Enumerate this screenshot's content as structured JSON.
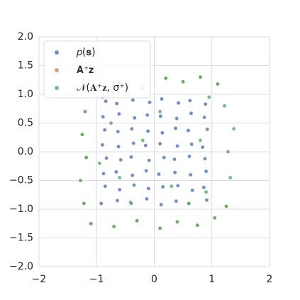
{
  "chart_data": {
    "type": "scatter",
    "xlim": [
      -2,
      2
    ],
    "ylim": [
      -2,
      2
    ],
    "xticks": [
      {
        "value": -2,
        "label": "−2"
      },
      {
        "value": -1,
        "label": "−1"
      },
      0,
      1,
      2
    ],
    "yticks": [
      {
        "value": -2,
        "label": "−2.0"
      },
      {
        "value": -1.5,
        "label": "−1.5"
      },
      {
        "value": -1,
        "label": "−1.0"
      },
      {
        "value": -0.5,
        "label": "−0.5"
      },
      {
        "value": 0,
        "label": "0.0"
      },
      {
        "value": 0.5,
        "label": "0.5"
      },
      {
        "value": 1,
        "label": "1.0"
      },
      {
        "value": 1.5,
        "label": "1.5"
      },
      {
        "value": 2,
        "label": "2.0"
      }
    ],
    "grid": true,
    "legend": "upper-left",
    "series": [
      {
        "name": "𝑝(𝐬)",
        "color": "#4c72b0",
        "x": [
          -0.92,
          -0.64,
          -0.41,
          -0.13,
          0.12,
          0.38,
          0.6,
          0.91,
          -0.85,
          -0.6,
          -0.35,
          -0.1,
          0.15,
          0.41,
          0.66,
          0.86,
          -0.88,
          -0.66,
          -0.38,
          -0.14,
          0.08,
          0.36,
          0.63,
          0.9,
          -0.83,
          -0.58,
          -0.4,
          -0.09,
          0.17,
          0.35,
          0.61,
          0.88,
          -0.9,
          -0.62,
          -0.36,
          -0.15,
          0.1,
          0.4,
          0.65,
          0.84,
          -0.86,
          -0.63,
          -0.39,
          -0.11,
          0.14,
          0.37,
          0.59,
          0.92,
          -0.89,
          -0.61,
          -0.34,
          -0.12,
          0.11,
          0.39,
          0.64,
          0.87,
          -0.84,
          -0.65,
          -0.37,
          -0.08,
          0.13,
          0.42,
          0.62,
          0.89
        ],
        "values": [
          -0.9,
          -0.85,
          -0.88,
          -0.82,
          -0.92,
          -0.86,
          -0.9,
          -0.84,
          -0.6,
          -0.66,
          -0.58,
          -0.64,
          -0.61,
          -0.59,
          -0.67,
          -0.62,
          -0.38,
          -0.35,
          -0.41,
          -0.33,
          -0.39,
          -0.36,
          -0.4,
          -0.34,
          -0.11,
          -0.14,
          -0.09,
          -0.15,
          -0.1,
          -0.13,
          -0.08,
          -0.12,
          0.12,
          0.09,
          0.15,
          0.11,
          0.14,
          0.1,
          0.13,
          0.08,
          0.38,
          0.35,
          0.4,
          0.36,
          0.33,
          0.41,
          0.37,
          0.39,
          0.61,
          0.66,
          0.59,
          0.64,
          0.62,
          0.58,
          0.67,
          0.6,
          0.88,
          0.84,
          0.9,
          0.86,
          0.92,
          0.85,
          0.89,
          0.83
        ]
      },
      {
        "name": "𝐀⁺𝐳",
        "color": "#dd8452",
        "x": [
          -1.0,
          -0.6,
          -0.2,
          0.2,
          0.5,
          0.8,
          1.1,
          -1.1,
          -0.7,
          -0.3,
          0.1,
          0.4,
          0.75,
          1.05,
          -1.22,
          -1.28,
          -1.18,
          -1.25,
          -1.2,
          1.25
        ],
        "values": [
          1.15,
          1.2,
          1.1,
          1.28,
          1.22,
          1.3,
          1.18,
          -1.25,
          -1.3,
          -1.2,
          -1.33,
          -1.22,
          -1.28,
          -1.15,
          -0.9,
          -0.5,
          -0.1,
          0.3,
          0.7,
          -0.95
        ]
      },
      {
        "name": "𝒩(𝐀⁺𝐳, σ⁺)",
        "color": "#55a868",
        "x": [
          -1.0,
          -0.6,
          -0.2,
          0.2,
          0.5,
          0.8,
          1.1,
          -1.1,
          -0.7,
          -0.3,
          0.1,
          0.4,
          0.75,
          1.05,
          -1.22,
          -1.28,
          -1.18,
          -1.25,
          -1.2,
          1.25,
          1.32,
          1.28,
          1.38,
          1.22,
          -0.75,
          0.3,
          0.8,
          -0.4,
          0.1,
          -0.95,
          0.6,
          -0.2,
          0.95,
          -0.9,
          0.9,
          -0.6
        ],
        "values": [
          1.15,
          1.2,
          1.1,
          1.28,
          1.22,
          1.3,
          1.18,
          -1.25,
          -1.3,
          -1.2,
          -1.33,
          -1.22,
          -1.28,
          -1.15,
          -0.9,
          -0.5,
          -0.1,
          0.3,
          0.7,
          -0.95,
          -0.45,
          0.0,
          0.4,
          0.8,
          0.5,
          -0.6,
          0.2,
          -0.9,
          0.7,
          -0.2,
          -0.9,
          0.2,
          0.95,
          0.95,
          -0.7,
          -0.45
        ]
      }
    ]
  }
}
